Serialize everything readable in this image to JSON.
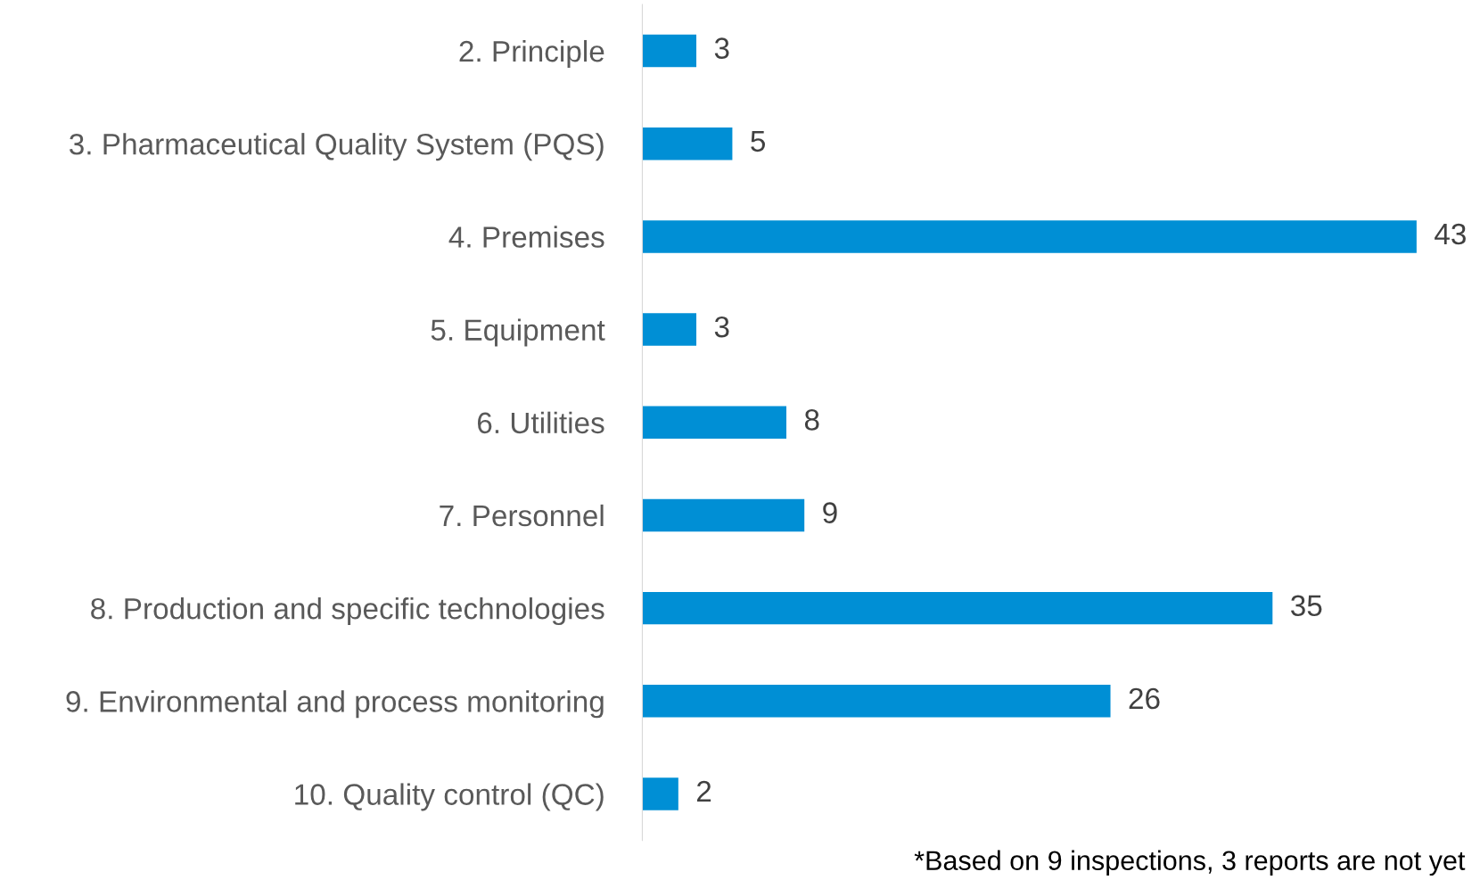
{
  "chart_data": {
    "type": "bar",
    "orientation": "horizontal",
    "categories": [
      "2. Principle",
      "3. Pharmaceutical Quality System (PQS)",
      "4. Premises",
      "5. Equipment",
      "6. Utilities",
      "7. Personnel",
      "8. Production and specific technologies",
      "9. Environmental and process monitoring",
      "10. Quality control (QC)"
    ],
    "values": [
      3,
      5,
      43,
      3,
      8,
      9,
      35,
      26,
      2
    ],
    "color": "#008fd5",
    "data_labels": true,
    "grid": false,
    "legend": false,
    "tick_labels": "y",
    "annotations": [
      "*Based on 9 inspections, 3 reports are not yet"
    ]
  }
}
